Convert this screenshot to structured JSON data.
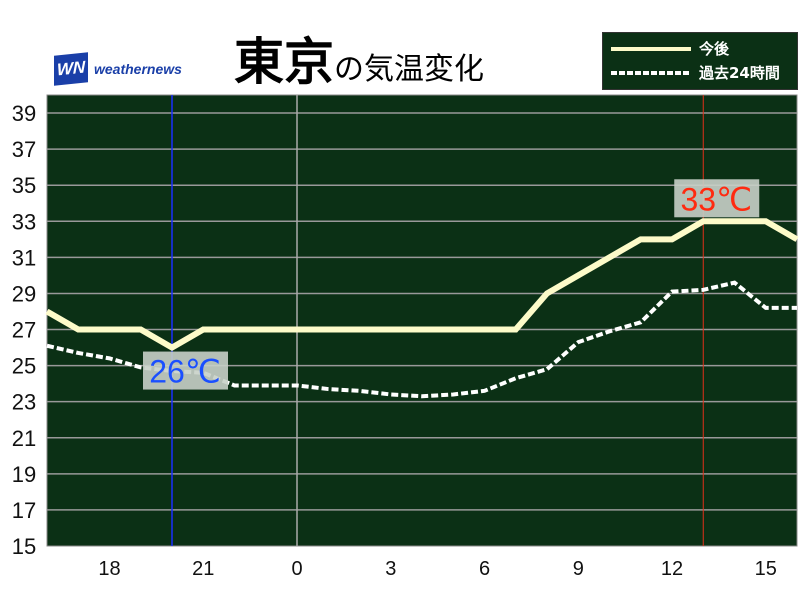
{
  "brand": {
    "logo_mark": "WN",
    "name": "weathernews"
  },
  "title": {
    "main": "東京",
    "sub": "の気温変化"
  },
  "chart_data": {
    "type": "line",
    "x": [
      "16",
      "17",
      "18",
      "19",
      "20",
      "21",
      "22",
      "23",
      "0",
      "1",
      "2",
      "3",
      "4",
      "5",
      "6",
      "7",
      "8",
      "9",
      "10",
      "11",
      "12",
      "13",
      "14",
      "15",
      "16"
    ],
    "xticks": [
      "18",
      "21",
      "0",
      "3",
      "6",
      "9",
      "12",
      "15"
    ],
    "yticks": [
      15,
      17,
      19,
      21,
      23,
      25,
      27,
      29,
      31,
      33,
      35,
      37,
      39
    ],
    "ylim": [
      15,
      40
    ],
    "grid": true,
    "legend": "top-right",
    "series": [
      {
        "name": "今後",
        "style": "solid",
        "color": "#fdfbc9",
        "values": [
          28,
          27,
          27,
          27,
          26,
          27,
          27,
          27,
          27,
          27,
          27,
          27,
          27,
          27,
          27,
          27,
          29,
          30,
          31,
          32,
          32,
          33,
          33,
          33,
          32
        ]
      },
      {
        "name": "過去24時間",
        "style": "dashed",
        "color": "#ffffff",
        "values": [
          26.1,
          25.7,
          25.4,
          24.9,
          24.7,
          24.6,
          23.9,
          23.9,
          23.9,
          23.7,
          23.6,
          23.4,
          23.3,
          23.4,
          23.6,
          24.3,
          24.8,
          26.3,
          26.9,
          27.4,
          29.1,
          29.2,
          29.6,
          28.2,
          28.2
        ]
      }
    ],
    "annotations": [
      {
        "text": "26℃",
        "x": "20",
        "y": 26,
        "color": "#1a4fff"
      },
      {
        "text": "33℃",
        "x": "13",
        "y": 33,
        "color": "#ff2a10"
      }
    ],
    "current_time_marker": {
      "x": "20",
      "color": "#1a2fff"
    },
    "max_time_marker": {
      "x": "13",
      "color": "#e0301a"
    },
    "midnight_marker": {
      "x": "0"
    },
    "background": "#0b3015"
  }
}
